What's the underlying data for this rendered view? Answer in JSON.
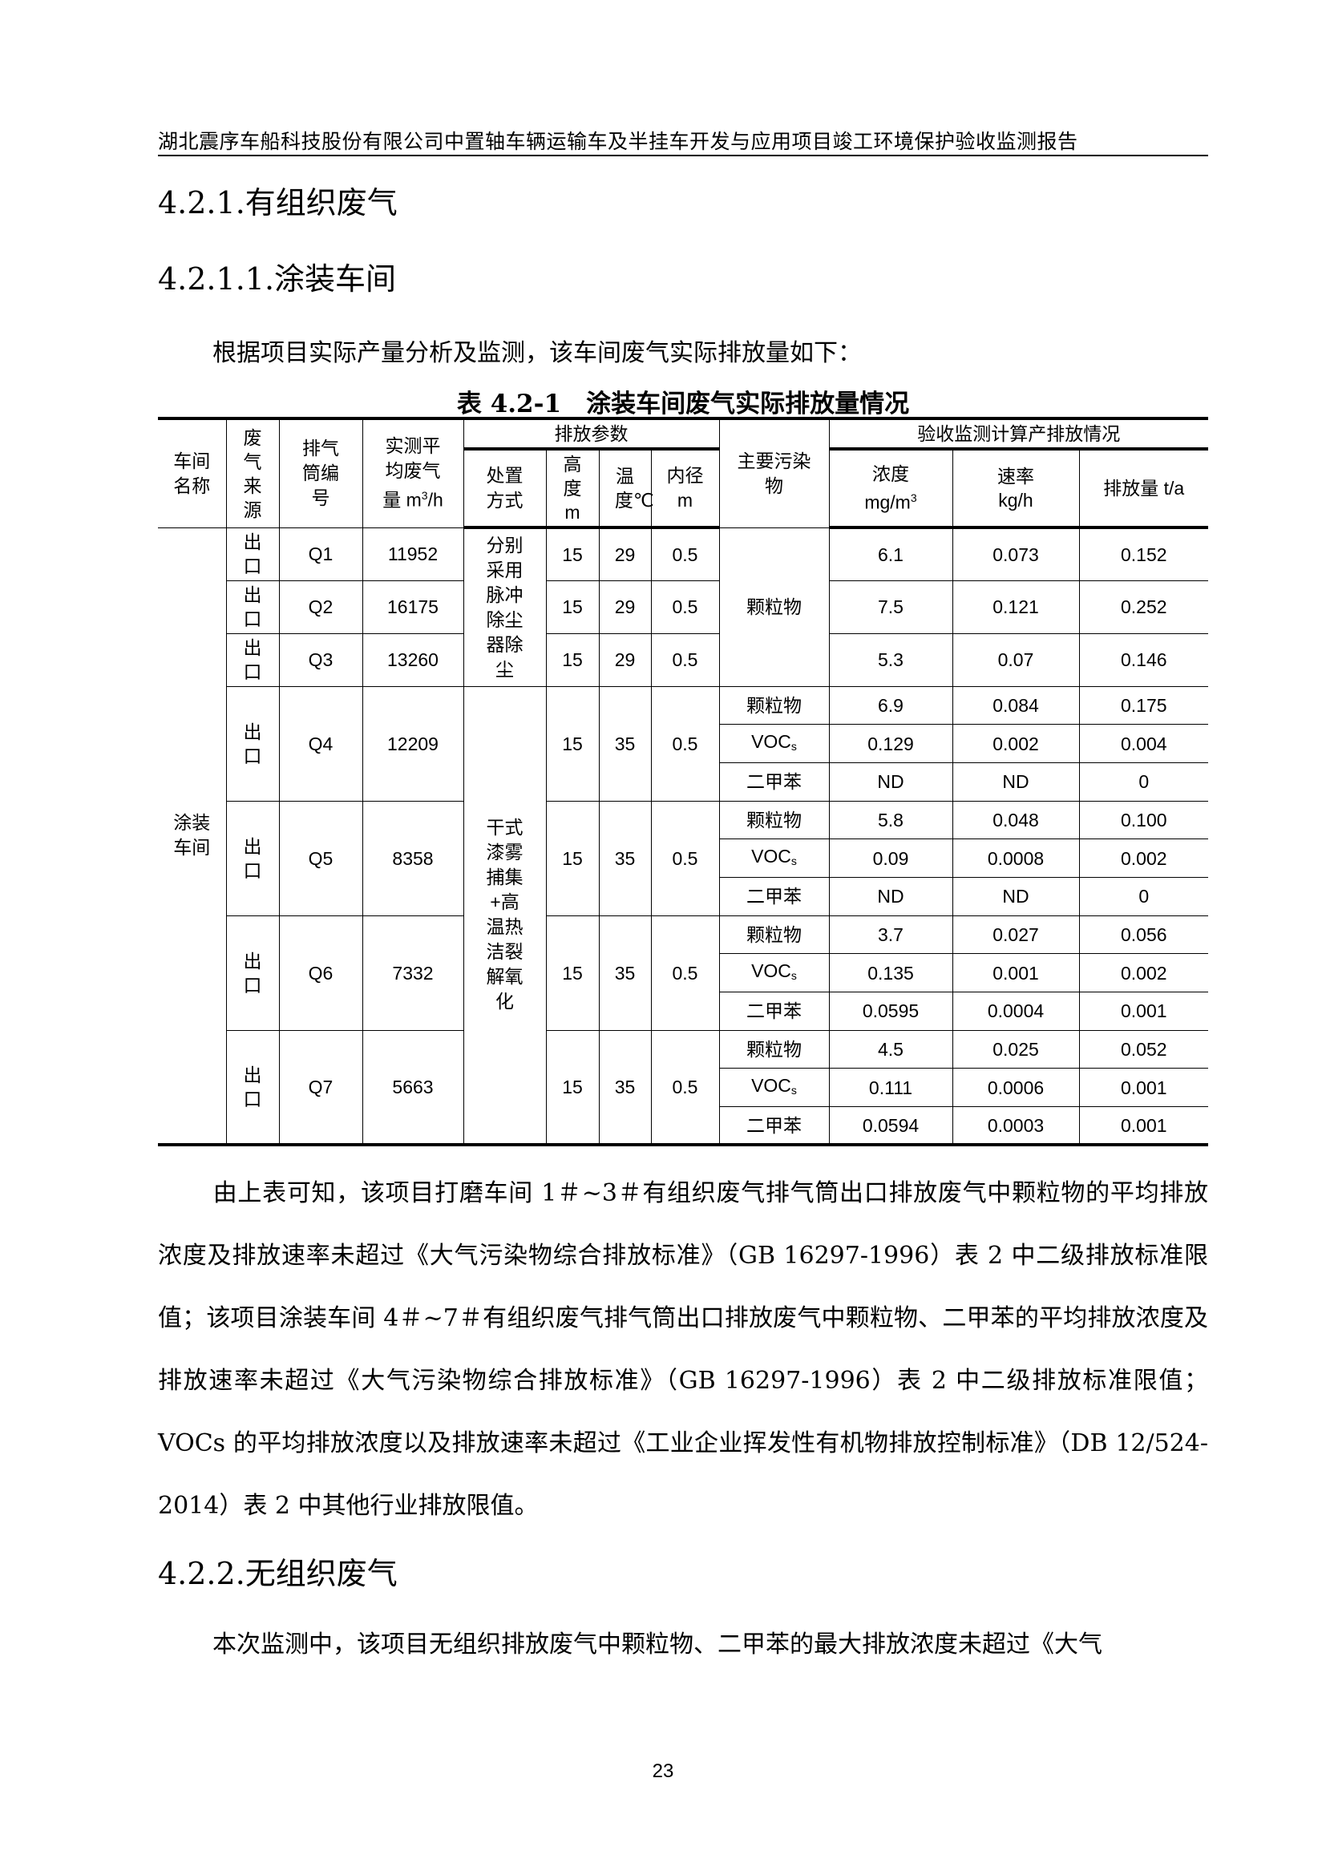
{
  "running_head": "湖北震序车船科技股份有限公司中置轴车辆运输车及半挂车开发与应用项目竣工环境保护验收监测报告",
  "headings": {
    "h1": "4.2.1.有组织废气",
    "h2": "4.2.1.1.涂装车间",
    "h3": "4.2.2.无组织废气"
  },
  "intro": "根据项目实际产量分析及监测，该车间废气实际排放量如下：",
  "table": {
    "caption": "表 4.2-1　涂装车间废气实际排放量情况",
    "headers": {
      "workshop": "车间名称",
      "source": "废气来源",
      "stack": "排气筒编号",
      "flow": "实测平均废气量 m",
      "flow_sup": "3",
      "flow_unit": "/h",
      "params": "排放参数",
      "treatment": "处置方式",
      "height": "高度m",
      "temp": "温度℃",
      "diameter": "内径m",
      "pollutant": "主要污染物",
      "monitoring": "验收监测计算产排放情况",
      "conc": "浓度",
      "conc_unit": "mg/m",
      "conc_sup": "3",
      "rate": "速率",
      "rate_unit": "kg/h",
      "amount": "排放量 t/a"
    },
    "workshop": "涂装车间",
    "group1": {
      "treatment": "分别采用脉冲除尘器除尘",
      "pollutant": "颗粒物",
      "rows": [
        {
          "source": "出口",
          "stack": "Q1",
          "flow": "11952",
          "height": "15",
          "temp": "29",
          "diameter": "0.5",
          "conc": "6.1",
          "rate": "0.073",
          "amount": "0.152"
        },
        {
          "source": "出口",
          "stack": "Q2",
          "flow": "16175",
          "height": "15",
          "temp": "29",
          "diameter": "0.5",
          "conc": "7.5",
          "rate": "0.121",
          "amount": "0.252"
        },
        {
          "source": "出口",
          "stack": "Q3",
          "flow": "13260",
          "height": "15",
          "temp": "29",
          "diameter": "0.5",
          "conc": "5.3",
          "rate": "0.07",
          "amount": "0.146"
        }
      ]
    },
    "group2": {
      "treatment": "干式漆雾捕集+高温热洁裂解氧化",
      "stacks": [
        {
          "source": "出口",
          "stack": "Q4",
          "flow": "12209",
          "height": "15",
          "temp": "35",
          "diameter": "0.5",
          "items": [
            {
              "pollutant": "颗粒物",
              "conc": "6.9",
              "rate": "0.084",
              "amount": "0.175"
            },
            {
              "pollutant": "VOCs",
              "conc": "0.129",
              "rate": "0.002",
              "amount": "0.004"
            },
            {
              "pollutant": "二甲苯",
              "conc": "ND",
              "rate": "ND",
              "amount": "0"
            }
          ]
        },
        {
          "source": "出口",
          "stack": "Q5",
          "flow": "8358",
          "height": "15",
          "temp": "35",
          "diameter": "0.5",
          "items": [
            {
              "pollutant": "颗粒物",
              "conc": "5.8",
              "rate": "0.048",
              "amount": "0.100"
            },
            {
              "pollutant": "VOCs",
              "conc": "0.09",
              "rate": "0.0008",
              "amount": "0.002"
            },
            {
              "pollutant": "二甲苯",
              "conc": "ND",
              "rate": "ND",
              "amount": "0"
            }
          ]
        },
        {
          "source": "出口",
          "stack": "Q6",
          "flow": "7332",
          "height": "15",
          "temp": "35",
          "diameter": "0.5",
          "items": [
            {
              "pollutant": "颗粒物",
              "conc": "3.7",
              "rate": "0.027",
              "amount": "0.056"
            },
            {
              "pollutant": "VOCs",
              "conc": "0.135",
              "rate": "0.001",
              "amount": "0.002"
            },
            {
              "pollutant": "二甲苯",
              "conc": "0.0595",
              "rate": "0.0004",
              "amount": "0.001"
            }
          ]
        },
        {
          "source": "出口",
          "stack": "Q7",
          "flow": "5663",
          "height": "15",
          "temp": "35",
          "diameter": "0.5",
          "items": [
            {
              "pollutant": "颗粒物",
              "conc": "4.5",
              "rate": "0.025",
              "amount": "0.052"
            },
            {
              "pollutant": "VOCs",
              "conc": "0.111",
              "rate": "0.0006",
              "amount": "0.001"
            },
            {
              "pollutant": "二甲苯",
              "conc": "0.0594",
              "rate": "0.0003",
              "amount": "0.001"
            }
          ]
        }
      ]
    }
  },
  "conclusion": "由上表可知，该项目打磨车间 1＃~3＃有组织废气排气筒出口排放废气中颗粒物的平均排放浓度及排放速率未超过《大气污染物综合排放标准》（GB 16297-1996）表 2 中二级排放标准限值；该项目涂装车间 4＃~7＃有组织废气排气筒出口排放废气中颗粒物、二甲苯的平均排放浓度及排放速率未超过《大气污染物综合排放标准》（GB 16297-1996）表 2 中二级排放标准限值；VOCs 的平均排放浓度以及排放速率未超过《工业企业挥发性有机物排放控制标准》（DB 12/524-2014）表 2 中其他行业排放限值。",
  "fugitive": "本次监测中，该项目无组织排放废气中颗粒物、二甲苯的最大排放浓度未超过《大气",
  "page_number": "23"
}
